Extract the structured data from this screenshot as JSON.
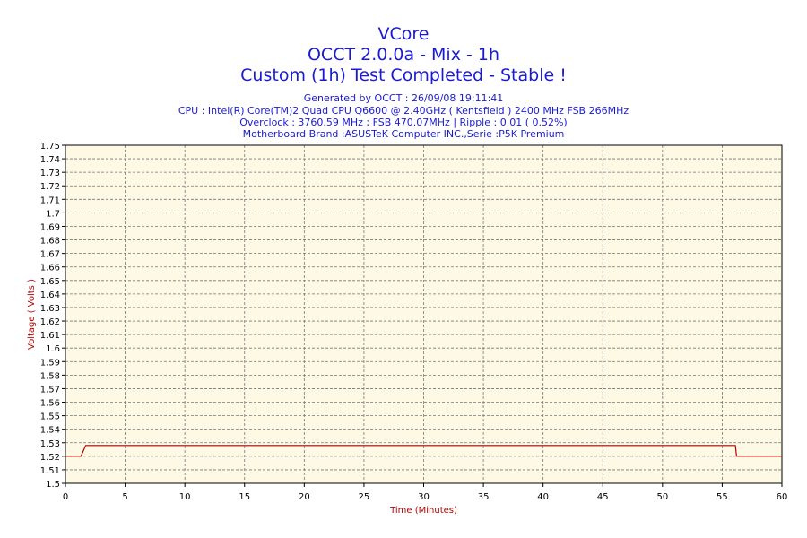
{
  "header": {
    "title": "VCore",
    "subtitle": "OCCT 2.0.0a - Mix - 1h",
    "status": "Custom (1h) Test Completed - Stable !",
    "info_lines": [
      "Generated by OCCT : 26/09/08 19:11:41",
      "CPU : Intel(R) Core(TM)2 Quad CPU Q6600 @ 2.40GHz ( Kentsfield ) 2400 MHz FSB 266MHz",
      "Overclock : 3760.59 MHz ; FSB 470.07MHz | Ripple : 0.01 ( 0.52%)",
      "Motherboard Brand :ASUSTeK Computer INC.,Serie :P5K Premium"
    ]
  },
  "colors": {
    "plot_background": "#fdf9e5",
    "line": "#b00000",
    "grid": "#777777",
    "axis_label": "#b00000",
    "title": "#1a1ad6"
  },
  "chart_data": {
    "type": "line",
    "xlabel": "Time (Minutes)",
    "ylabel": "Voltage ( Volts )",
    "xlim": [
      0,
      60
    ],
    "ylim": [
      1.5,
      1.75
    ],
    "x_ticks": [
      0,
      5,
      10,
      15,
      20,
      25,
      30,
      35,
      40,
      45,
      50,
      55,
      60
    ],
    "y_ticks": [
      "1.5",
      "1.51",
      "1.52",
      "1.53",
      "1.54",
      "1.55",
      "1.56",
      "1.57",
      "1.58",
      "1.59",
      "1.6",
      "1.61",
      "1.62",
      "1.63",
      "1.64",
      "1.65",
      "1.66",
      "1.67",
      "1.68",
      "1.69",
      "1.7",
      "1.71",
      "1.72",
      "1.73",
      "1.74",
      "1.75"
    ],
    "grid": true,
    "series": [
      {
        "x": [
          0,
          1.3,
          1.7,
          56.1,
          56.2,
          60
        ],
        "y": [
          1.52,
          1.52,
          1.528,
          1.528,
          1.52,
          1.52
        ]
      }
    ]
  }
}
